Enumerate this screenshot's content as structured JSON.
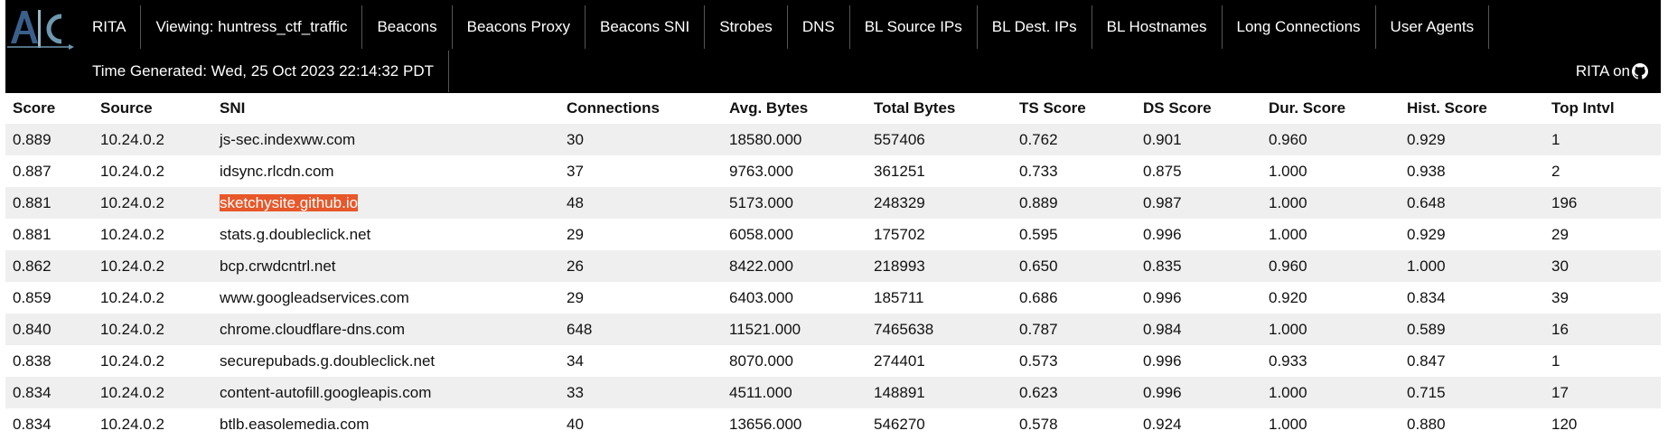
{
  "nav": {
    "items": [
      "RITA",
      "Viewing: huntress_ctf_traffic",
      "Beacons",
      "Beacons Proxy",
      "Beacons SNI",
      "Strobes",
      "DNS",
      "BL Source IPs",
      "BL Dest. IPs",
      "BL Hostnames",
      "Long Connections",
      "User Agents"
    ],
    "time_generated": "Time Generated: Wed, 25 Oct 2023 22:14:32 PDT",
    "rita_on": "RITA on"
  },
  "table": {
    "headers": [
      "Score",
      "Source",
      "SNI",
      "Connections",
      "Avg. Bytes",
      "Total Bytes",
      "TS Score",
      "DS Score",
      "Dur. Score",
      "Hist. Score",
      "Top Intvl"
    ],
    "highlighted_sni": "sketchysite.github.io",
    "rows": [
      [
        "0.889",
        "10.24.0.2",
        "js-sec.indexww.com",
        "30",
        "18580.000",
        "557406",
        "0.762",
        "0.901",
        "0.960",
        "0.929",
        "1"
      ],
      [
        "0.887",
        "10.24.0.2",
        "idsync.rlcdn.com",
        "37",
        "9763.000",
        "361251",
        "0.733",
        "0.875",
        "1.000",
        "0.938",
        "2"
      ],
      [
        "0.881",
        "10.24.0.2",
        "sketchysite.github.io",
        "48",
        "5173.000",
        "248329",
        "0.889",
        "0.987",
        "1.000",
        "0.648",
        "196"
      ],
      [
        "0.881",
        "10.24.0.2",
        "stats.g.doubleclick.net",
        "29",
        "6058.000",
        "175702",
        "0.595",
        "0.996",
        "1.000",
        "0.929",
        "29"
      ],
      [
        "0.862",
        "10.24.0.2",
        "bcp.crwdcntrl.net",
        "26",
        "8422.000",
        "218993",
        "0.650",
        "0.835",
        "0.960",
        "1.000",
        "30"
      ],
      [
        "0.859",
        "10.24.0.2",
        "www.googleadservices.com",
        "29",
        "6403.000",
        "185711",
        "0.686",
        "0.996",
        "0.920",
        "0.834",
        "39"
      ],
      [
        "0.840",
        "10.24.0.2",
        "chrome.cloudflare-dns.com",
        "648",
        "11521.000",
        "7465638",
        "0.787",
        "0.984",
        "1.000",
        "0.589",
        "16"
      ],
      [
        "0.838",
        "10.24.0.2",
        "securepubads.g.doubleclick.net",
        "34",
        "8070.000",
        "274401",
        "0.573",
        "0.996",
        "0.933",
        "0.847",
        "1"
      ],
      [
        "0.834",
        "10.24.0.2",
        "content-autofill.googleapis.com",
        "33",
        "4511.000",
        "148891",
        "0.623",
        "0.996",
        "1.000",
        "0.715",
        "17"
      ],
      [
        "0.834",
        "10.24.0.2",
        "btlb.easolemedia.com",
        "40",
        "13656.000",
        "546270",
        "0.578",
        "0.924",
        "1.000",
        "0.880",
        "120"
      ]
    ]
  }
}
